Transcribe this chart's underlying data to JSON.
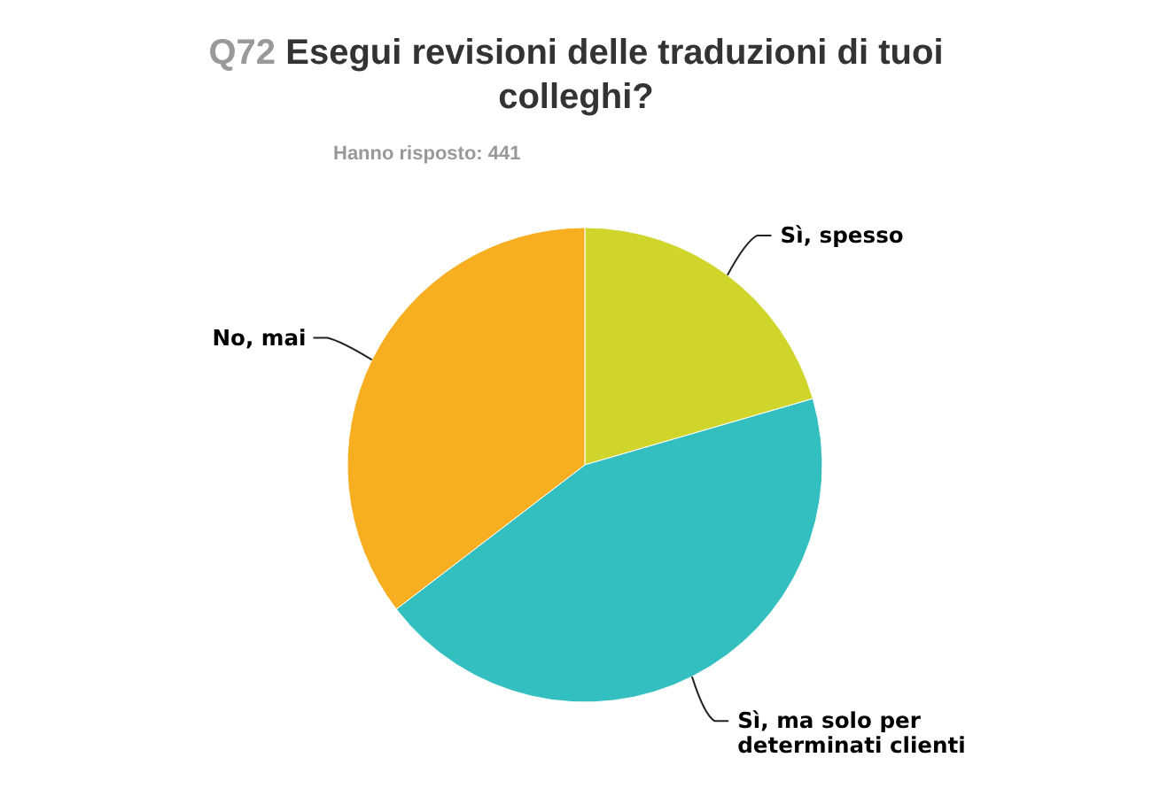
{
  "chart_data": {
    "type": "pie",
    "title": "Q72 Esegui revisioni delle traduzioni di tuoi colleghi?",
    "subtitle": "Hanno risposto: 441",
    "categories": [
      "Sì, spesso",
      "Sì, ma solo per determinati clienti",
      "No, mai"
    ],
    "values": [
      20.5,
      44.1,
      35.4
    ],
    "colors": [
      "#cfd52a",
      "#33bfc0",
      "#f7ae20"
    ]
  }
}
